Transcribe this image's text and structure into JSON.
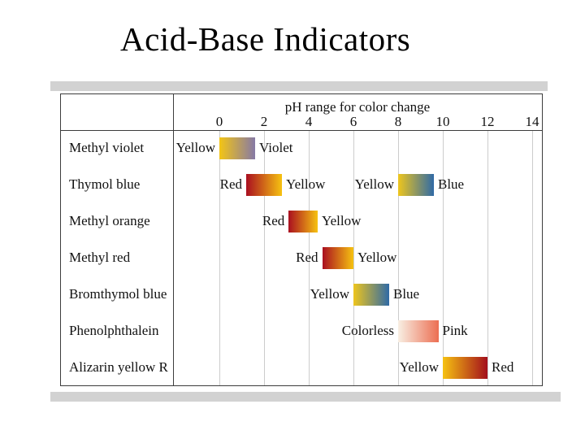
{
  "slide": {
    "title": "Acid-Base Indicators"
  },
  "colors": {
    "table_border": "#3c3c3c",
    "gridline": "#cccccc",
    "scan_band": "#d2d2d2",
    "text": "#111111"
  },
  "chart_data": {
    "type": "bar",
    "variant": "horizontal-ph-range",
    "title": "pH range for color change",
    "xlabel": "pH",
    "xlim": [
      0,
      14
    ],
    "x_ticks": [
      0,
      2,
      4,
      6,
      8,
      10,
      12,
      14
    ],
    "grid": "vertical lines at even pH values",
    "rows": [
      {
        "indicator": "Methyl violet",
        "segments": [
          {
            "ph_start": 0.0,
            "ph_end": 1.6,
            "left_label": "Yellow",
            "right_label": "Violet",
            "color_from": "#f3c515",
            "color_to": "#8679a6"
          }
        ]
      },
      {
        "indicator": "Thymol blue",
        "segments": [
          {
            "ph_start": 1.2,
            "ph_end": 2.8,
            "left_label": "Red",
            "right_label": "Yellow",
            "color_from": "#aa0f20",
            "color_to": "#f6c211"
          },
          {
            "ph_start": 8.0,
            "ph_end": 9.6,
            "left_label": "Yellow",
            "right_label": "Blue",
            "color_from": "#eec51d",
            "color_to": "#2f6aa6"
          }
        ]
      },
      {
        "indicator": "Methyl orange",
        "segments": [
          {
            "ph_start": 3.1,
            "ph_end": 4.4,
            "left_label": "Red",
            "right_label": "Yellow",
            "color_from": "#aa0f20",
            "color_to": "#f6c211"
          }
        ]
      },
      {
        "indicator": "Methyl red",
        "segments": [
          {
            "ph_start": 4.6,
            "ph_end": 6.0,
            "left_label": "Red",
            "right_label": "Yellow",
            "color_from": "#aa0f20",
            "color_to": "#f6c211"
          }
        ]
      },
      {
        "indicator": "Bromthymol blue",
        "segments": [
          {
            "ph_start": 6.0,
            "ph_end": 7.6,
            "left_label": "Yellow",
            "right_label": "Blue",
            "color_from": "#eec51d",
            "color_to": "#2f6aa6"
          }
        ]
      },
      {
        "indicator": "Phenolphthalein",
        "segments": [
          {
            "ph_start": 8.0,
            "ph_end": 9.8,
            "left_label": "Colorless",
            "right_label": "Pink",
            "color_from": "#f8efe3",
            "color_to": "#ec6e52"
          }
        ]
      },
      {
        "indicator": "Alizarin yellow R",
        "segments": [
          {
            "ph_start": 10.0,
            "ph_end": 12.0,
            "left_label": "Yellow",
            "right_label": "Red",
            "color_from": "#f6c211",
            "color_to": "#a30f1c"
          }
        ]
      }
    ]
  }
}
